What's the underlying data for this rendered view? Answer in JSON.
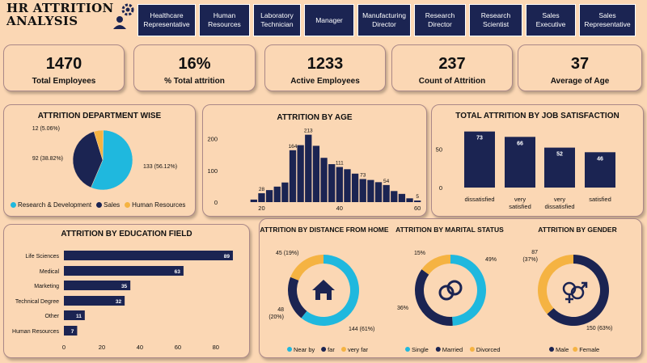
{
  "header": {
    "title_line1": "HR ATTRITION",
    "title_line2": "ANALYSIS",
    "nav_items": [
      "Healthcare Representative",
      "Human Resources",
      "Laboratory Technician",
      "Manager",
      "Manufacturing Director",
      "Research Director",
      "Research Scientist",
      "Sales Executive",
      "Sales Representative"
    ]
  },
  "kpis": [
    {
      "value": "1470",
      "label": "Total Employees"
    },
    {
      "value": "16%",
      "label": "% Total attrition"
    },
    {
      "value": "1233",
      "label": "Active Employees"
    },
    {
      "value": "237",
      "label": "Count of Attrition"
    },
    {
      "value": "37",
      "label": "Average of Age"
    }
  ],
  "colors": {
    "navy": "#1b2452",
    "teal": "#1fb8de",
    "amber": "#f5b342",
    "bg": "#fbd7b4"
  },
  "chart_data": [
    {
      "type": "pie",
      "title": "ATTRITION DEPARTMENT WISE",
      "categories": [
        "Research & Development",
        "Sales",
        "Human Resources"
      ],
      "values": [
        133,
        92,
        12
      ],
      "percent_labels": [
        "133 (56.12%)",
        "92 (38.82%)",
        "12 (5.06%)"
      ],
      "legend": "bottom"
    },
    {
      "type": "bar",
      "title": "ATTRITION BY AGE",
      "categories": [
        18,
        20,
        22,
        24,
        26,
        28,
        30,
        32,
        34,
        36,
        38,
        40,
        42,
        44,
        46,
        48,
        50,
        52,
        54,
        56,
        58,
        60
      ],
      "values": [
        8,
        28,
        38,
        49,
        62,
        164,
        180,
        213,
        178,
        140,
        120,
        111,
        104,
        90,
        73,
        70,
        63,
        54,
        35,
        26,
        12,
        5
      ],
      "data_labels": {
        "1": "28",
        "5": "164",
        "7": "213",
        "11": "111",
        "14": "73",
        "17": "54",
        "21": "5"
      },
      "x_ticks": [
        20,
        40,
        60
      ],
      "y_ticks": [
        0,
        100,
        200
      ],
      "xlim": [
        17,
        61
      ],
      "ylim": [
        0,
        230
      ]
    },
    {
      "type": "bar",
      "title": "TOTAL ATTRITION BY JOB SATISFACTION",
      "categories": [
        "dissatisfied",
        "very satisfied",
        "very dissatisfied",
        "satisfied"
      ],
      "values": [
        73,
        66,
        52,
        46
      ],
      "y_ticks": [
        0,
        50
      ],
      "ylim": [
        0,
        80
      ]
    },
    {
      "type": "bar",
      "orientation": "horizontal",
      "title": "ATTRITION BY EDUCATION FIELD",
      "categories": [
        "Life Sciences",
        "Medical",
        "Marketing",
        "Technical Degree",
        "Other",
        "Human Resources"
      ],
      "values": [
        89,
        63,
        35,
        32,
        11,
        7
      ],
      "x_ticks": [
        0,
        20,
        40,
        60,
        80
      ],
      "xlim": [
        0,
        92
      ]
    },
    {
      "type": "pie",
      "donut": true,
      "title": "ATTRITION BY  DISTANCE FROM HOME",
      "categories": [
        "Near by",
        "far",
        "very far"
      ],
      "values": [
        144,
        48,
        45
      ],
      "labels": [
        "144 (61%)",
        "48 (20%)",
        "45 (19%)"
      ],
      "icon": "house-icon"
    },
    {
      "type": "pie",
      "donut": true,
      "title": "ATTRITION BY MARITAL STATUS",
      "categories": [
        "Single",
        "Married",
        "Divorced"
      ],
      "values": [
        49,
        36,
        15
      ],
      "labels": [
        "49%",
        "36%",
        "15%"
      ],
      "icon": "rings-icon"
    },
    {
      "type": "pie",
      "donut": true,
      "title": "ATTRITION BY GENDER",
      "categories": [
        "Male",
        "Female"
      ],
      "values": [
        150,
        87
      ],
      "labels": [
        "150 (63%)",
        "87 (37%)"
      ],
      "icon": "gender-icon"
    }
  ]
}
